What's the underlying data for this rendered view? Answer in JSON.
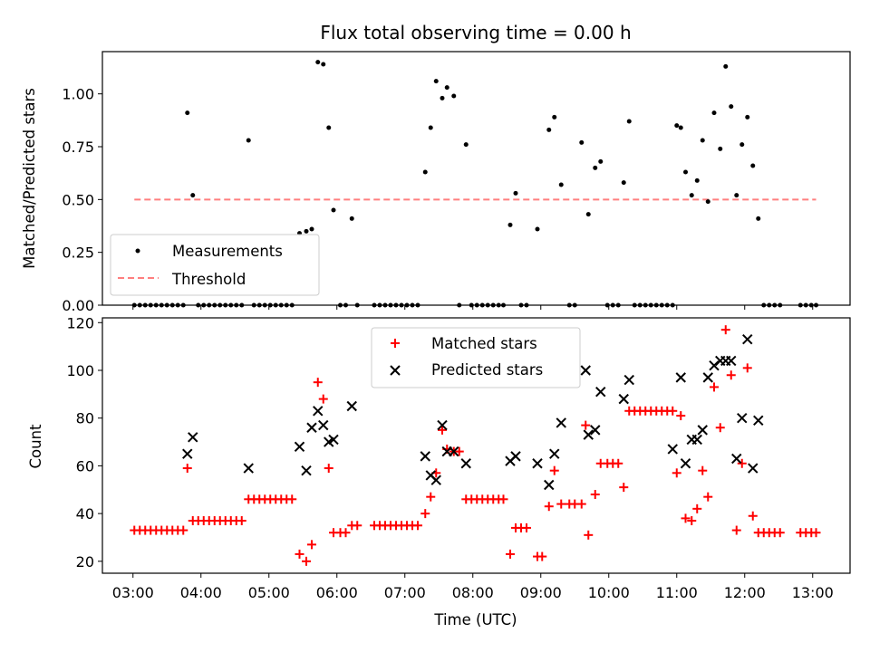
{
  "figure": {
    "title": "Flux total observing time = 0.00 h",
    "xlabel": "Time (UTC)",
    "xtick_labels": [
      "03:00",
      "04:00",
      "05:00",
      "06:00",
      "07:00",
      "08:00",
      "09:00",
      "10:00",
      "11:00",
      "12:00",
      "13:00"
    ]
  },
  "chart_data": [
    {
      "type": "scatter",
      "ylabel": "Matched/Predicted stars",
      "xlim": [
        2.55,
        13.55
      ],
      "ylim": [
        0,
        1.2
      ],
      "yticks": [
        0.0,
        0.25,
        0.5,
        0.75,
        1.0
      ],
      "ytick_labels": [
        "0.00",
        "0.25",
        "0.50",
        "0.75",
        "1.00"
      ],
      "legend_position": "lower-left",
      "colors": {
        "measurements": "#000000",
        "threshold": "#ff7f7f"
      },
      "threshold": {
        "name": "Threshold",
        "value": 0.5,
        "x_range": [
          3.02,
          13.05
        ]
      },
      "measurements": {
        "name": "Measurements",
        "x": [
          3.02,
          3.1,
          3.18,
          3.26,
          3.34,
          3.42,
          3.5,
          3.58,
          3.66,
          3.74,
          3.8,
          3.88,
          3.96,
          4.04,
          4.12,
          4.2,
          4.28,
          4.36,
          4.44,
          4.52,
          4.6,
          4.7,
          4.78,
          4.86,
          4.94,
          5.02,
          5.1,
          5.18,
          5.26,
          5.34,
          5.45,
          5.55,
          5.63,
          5.72,
          5.8,
          5.88,
          5.95,
          6.05,
          6.13,
          6.22,
          6.3,
          6.55,
          6.63,
          6.71,
          6.79,
          6.87,
          6.95,
          7.03,
          7.11,
          7.19,
          7.3,
          7.38,
          7.46,
          7.55,
          7.62,
          7.72,
          7.8,
          7.9,
          7.98,
          8.06,
          8.14,
          8.22,
          8.3,
          8.38,
          8.45,
          8.55,
          8.63,
          8.71,
          8.79,
          8.95,
          9.12,
          9.2,
          9.3,
          9.42,
          9.5,
          9.6,
          9.7,
          9.8,
          9.88,
          9.98,
          10.06,
          10.14,
          10.22,
          10.3,
          10.38,
          10.46,
          10.54,
          10.62,
          10.7,
          10.78,
          10.86,
          10.94,
          11.0,
          11.06,
          11.13,
          11.22,
          11.3,
          11.38,
          11.46,
          11.55,
          11.64,
          11.72,
          11.8,
          11.88,
          11.96,
          12.04,
          12.12,
          12.2,
          12.28,
          12.36,
          12.44,
          12.52,
          12.82,
          12.9,
          12.98,
          13.05
        ],
        "y": [
          0,
          0,
          0,
          0,
          0,
          0,
          0,
          0,
          0,
          0,
          0.91,
          0.52,
          0,
          0,
          0,
          0,
          0,
          0,
          0,
          0,
          0,
          0.78,
          0,
          0,
          0,
          0,
          0,
          0,
          0,
          0,
          0.34,
          0.35,
          0.36,
          1.15,
          1.14,
          0.84,
          0.45,
          0,
          0,
          0.41,
          0,
          0,
          0,
          0,
          0,
          0,
          0,
          0,
          0,
          0,
          0.63,
          0.84,
          1.06,
          0.98,
          1.03,
          0.99,
          0,
          0.76,
          0,
          0,
          0,
          0,
          0,
          0,
          0,
          0.38,
          0.53,
          0,
          0,
          0.36,
          0.83,
          0.89,
          0.57,
          0,
          0,
          0.77,
          0.43,
          0.65,
          0.68,
          0,
          0,
          0,
          0.58,
          0.87,
          0,
          0,
          0,
          0,
          0,
          0,
          0,
          0,
          0.85,
          0.84,
          0.63,
          0.52,
          0.59,
          0.78,
          0.49,
          0.91,
          0.74,
          1.13,
          0.94,
          0.52,
          0.76,
          0.89,
          0.66,
          0.41,
          0,
          0,
          0,
          0,
          0,
          0,
          0,
          0
        ]
      }
    },
    {
      "type": "scatter",
      "ylabel": "Count",
      "xlim": [
        2.55,
        13.55
      ],
      "ylim": [
        15,
        122
      ],
      "yticks": [
        20,
        40,
        60,
        80,
        100,
        120
      ],
      "ytick_labels": [
        "20",
        "40",
        "60",
        "80",
        "100",
        "120"
      ],
      "legend_position": "upper-center",
      "colors": {
        "matched": "#ff0000",
        "predicted": "#000000"
      },
      "matched": {
        "name": "Matched stars",
        "x": [
          3.02,
          3.1,
          3.18,
          3.26,
          3.34,
          3.42,
          3.5,
          3.58,
          3.66,
          3.74,
          3.8,
          3.88,
          3.96,
          4.04,
          4.12,
          4.2,
          4.28,
          4.36,
          4.44,
          4.52,
          4.6,
          4.7,
          4.78,
          4.86,
          4.94,
          5.02,
          5.1,
          5.18,
          5.26,
          5.34,
          5.45,
          5.55,
          5.63,
          5.72,
          5.8,
          5.88,
          5.95,
          6.05,
          6.13,
          6.22,
          6.3,
          6.55,
          6.63,
          6.71,
          6.79,
          6.87,
          6.95,
          7.03,
          7.11,
          7.19,
          7.3,
          7.38,
          7.46,
          7.55,
          7.62,
          7.72,
          7.8,
          7.9,
          7.98,
          8.06,
          8.14,
          8.22,
          8.3,
          8.38,
          8.45,
          8.55,
          8.63,
          8.71,
          8.79,
          8.95,
          9.02,
          9.12,
          9.2,
          9.3,
          9.42,
          9.5,
          9.6,
          9.66,
          9.7,
          9.8,
          9.88,
          9.98,
          10.06,
          10.14,
          10.22,
          10.3,
          10.38,
          10.46,
          10.54,
          10.62,
          10.7,
          10.78,
          10.86,
          10.94,
          11.0,
          11.06,
          11.13,
          11.22,
          11.3,
          11.38,
          11.46,
          11.55,
          11.64,
          11.72,
          11.8,
          11.88,
          11.96,
          12.04,
          12.12,
          12.2,
          12.28,
          12.36,
          12.44,
          12.52,
          12.82,
          12.9,
          12.98,
          13.05
        ],
        "y": [
          33,
          33,
          33,
          33,
          33,
          33,
          33,
          33,
          33,
          33,
          59,
          37,
          37,
          37,
          37,
          37,
          37,
          37,
          37,
          37,
          37,
          46,
          46,
          46,
          46,
          46,
          46,
          46,
          46,
          46,
          23,
          20,
          27,
          95,
          88,
          59,
          32,
          32,
          32,
          35,
          35,
          35,
          35,
          35,
          35,
          35,
          35,
          35,
          35,
          35,
          40,
          47,
          57,
          75,
          67,
          66,
          66,
          46,
          46,
          46,
          46,
          46,
          46,
          46,
          46,
          23,
          34,
          34,
          34,
          22,
          22,
          43,
          58,
          44,
          44,
          44,
          44,
          77,
          31,
          48,
          61,
          61,
          61,
          61,
          51,
          83,
          83,
          83,
          83,
          83,
          83,
          83,
          83,
          83,
          57,
          81,
          38,
          37,
          42,
          58,
          47,
          93,
          76,
          117,
          98,
          33,
          61,
          101,
          39,
          32,
          32,
          32,
          32,
          32,
          32,
          32,
          32,
          32
        ]
      },
      "predicted": {
        "name": "Predicted stars",
        "x": [
          3.8,
          3.88,
          4.7,
          5.45,
          5.55,
          5.63,
          5.72,
          5.8,
          5.88,
          5.95,
          6.22,
          7.3,
          7.38,
          7.46,
          7.55,
          7.62,
          7.72,
          7.9,
          8.55,
          8.63,
          8.95,
          9.12,
          9.2,
          9.3,
          9.66,
          9.7,
          9.8,
          9.88,
          10.22,
          10.3,
          10.94,
          11.06,
          11.13,
          11.22,
          11.3,
          11.38,
          11.46,
          11.55,
          11.64,
          11.72,
          11.8,
          11.88,
          11.96,
          12.04,
          12.12,
          12.2
        ],
        "y": [
          65,
          72,
          59,
          68,
          58,
          76,
          83,
          77,
          70,
          71,
          85,
          64,
          56,
          54,
          77,
          66,
          66,
          61,
          62,
          64,
          61,
          52,
          65,
          78,
          100,
          73,
          75,
          91,
          88,
          96,
          67,
          97,
          61,
          71,
          71,
          75,
          97,
          102,
          104,
          104,
          104,
          63,
          80,
          113,
          59,
          79
        ]
      }
    }
  ]
}
